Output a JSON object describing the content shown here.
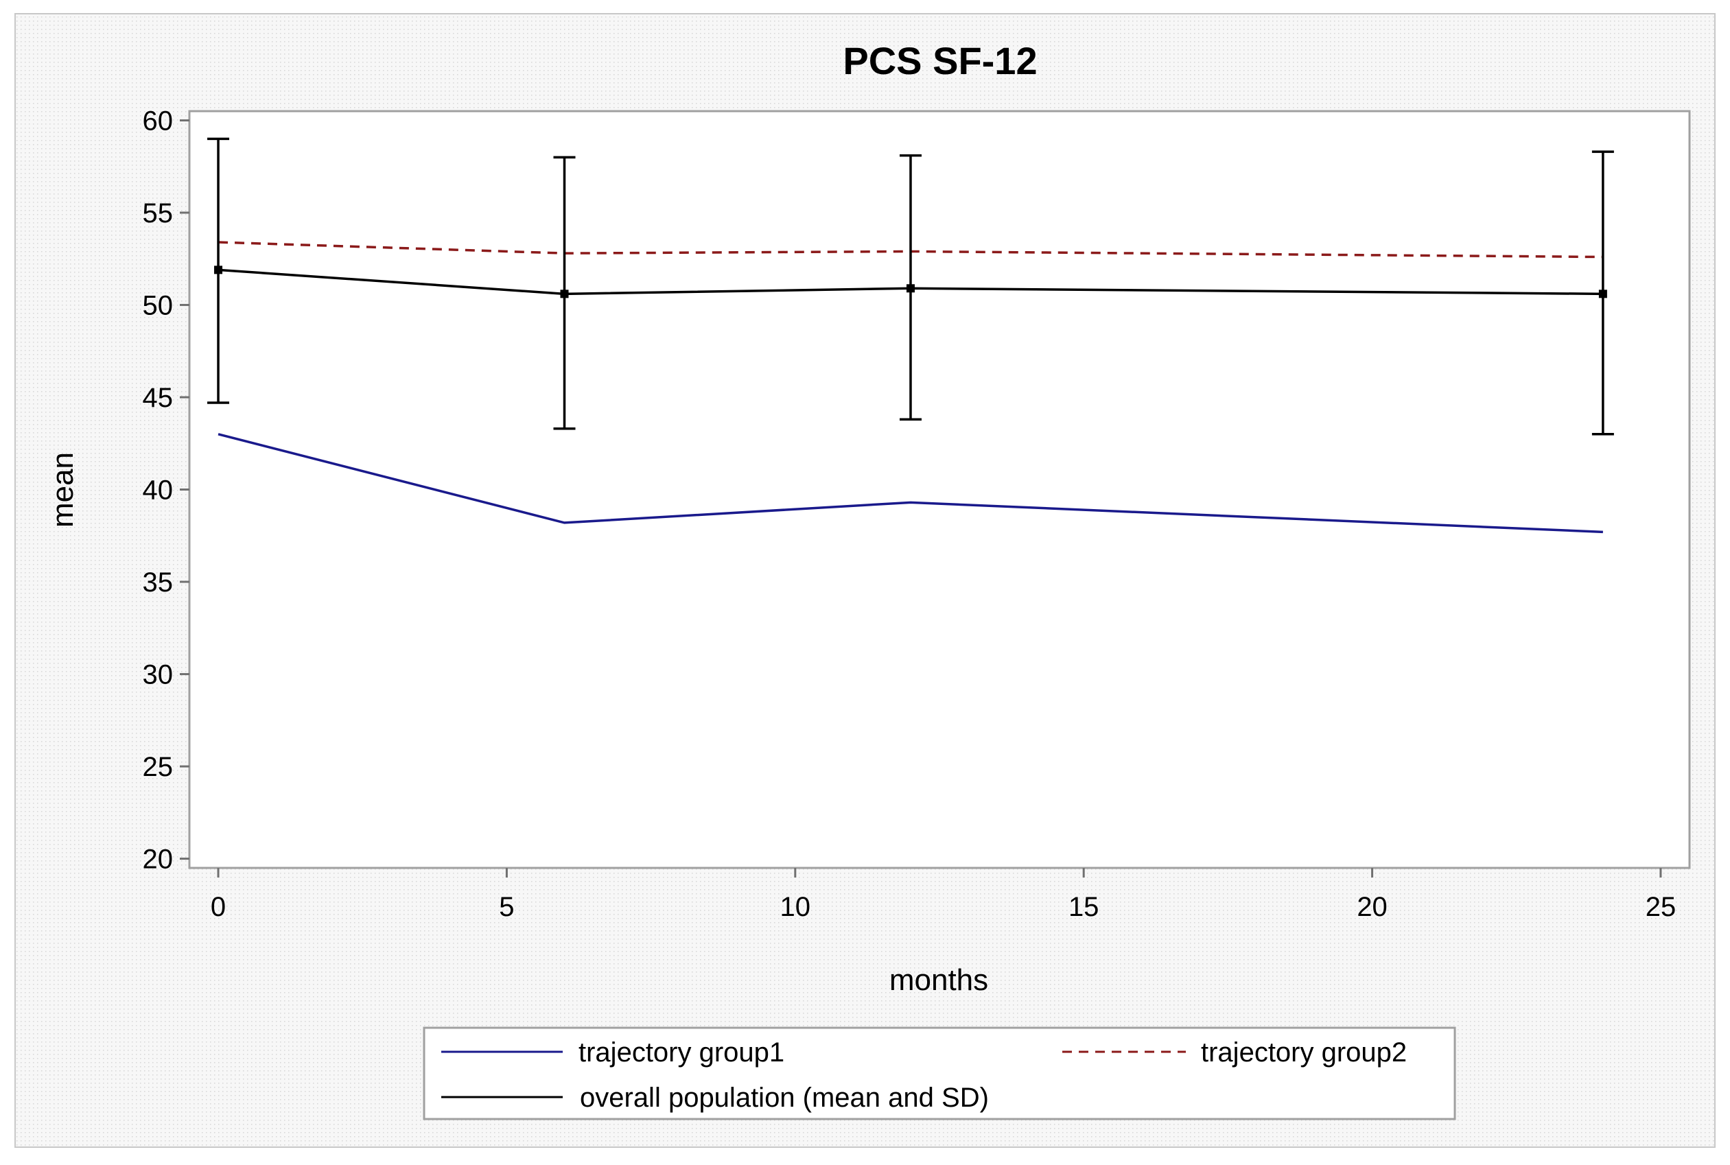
{
  "chart_data": {
    "type": "line",
    "title": "PCS SF-12",
    "xlabel": "months",
    "ylabel": "mean",
    "xlim": [
      -0.5,
      25.5
    ],
    "ylim": [
      19.5,
      60.5
    ],
    "xticks": [
      0,
      5,
      10,
      15,
      20,
      25
    ],
    "yticks": [
      20,
      25,
      30,
      35,
      40,
      45,
      50,
      55,
      60
    ],
    "xtick_labels": [
      "0",
      "5",
      "10",
      "15",
      "20",
      "25"
    ],
    "ytick_labels": [
      "20",
      "25",
      "30",
      "35",
      "40",
      "45",
      "50",
      "55",
      "60"
    ],
    "grid": false,
    "legend_position": "bottom",
    "series": [
      {
        "name": "trajectory group1",
        "color": "#1a1a8c",
        "style": "solid",
        "x": [
          0,
          6,
          12,
          24
        ],
        "values": [
          43.0,
          38.2,
          39.3,
          37.7
        ]
      },
      {
        "name": "trajectory group2",
        "color": "#8b1a1a",
        "style": "dashed",
        "x": [
          0,
          6,
          12,
          24
        ],
        "values": [
          53.4,
          52.8,
          52.9,
          52.6
        ]
      },
      {
        "name": "overall population (mean and SD)",
        "color": "#000000",
        "style": "solid",
        "x": [
          0,
          6,
          12,
          24
        ],
        "values": [
          51.9,
          50.6,
          50.9,
          50.6
        ],
        "error_low": [
          44.7,
          43.3,
          43.8,
          43.0
        ],
        "error_high": [
          59.0,
          58.0,
          58.1,
          58.3
        ]
      }
    ]
  }
}
